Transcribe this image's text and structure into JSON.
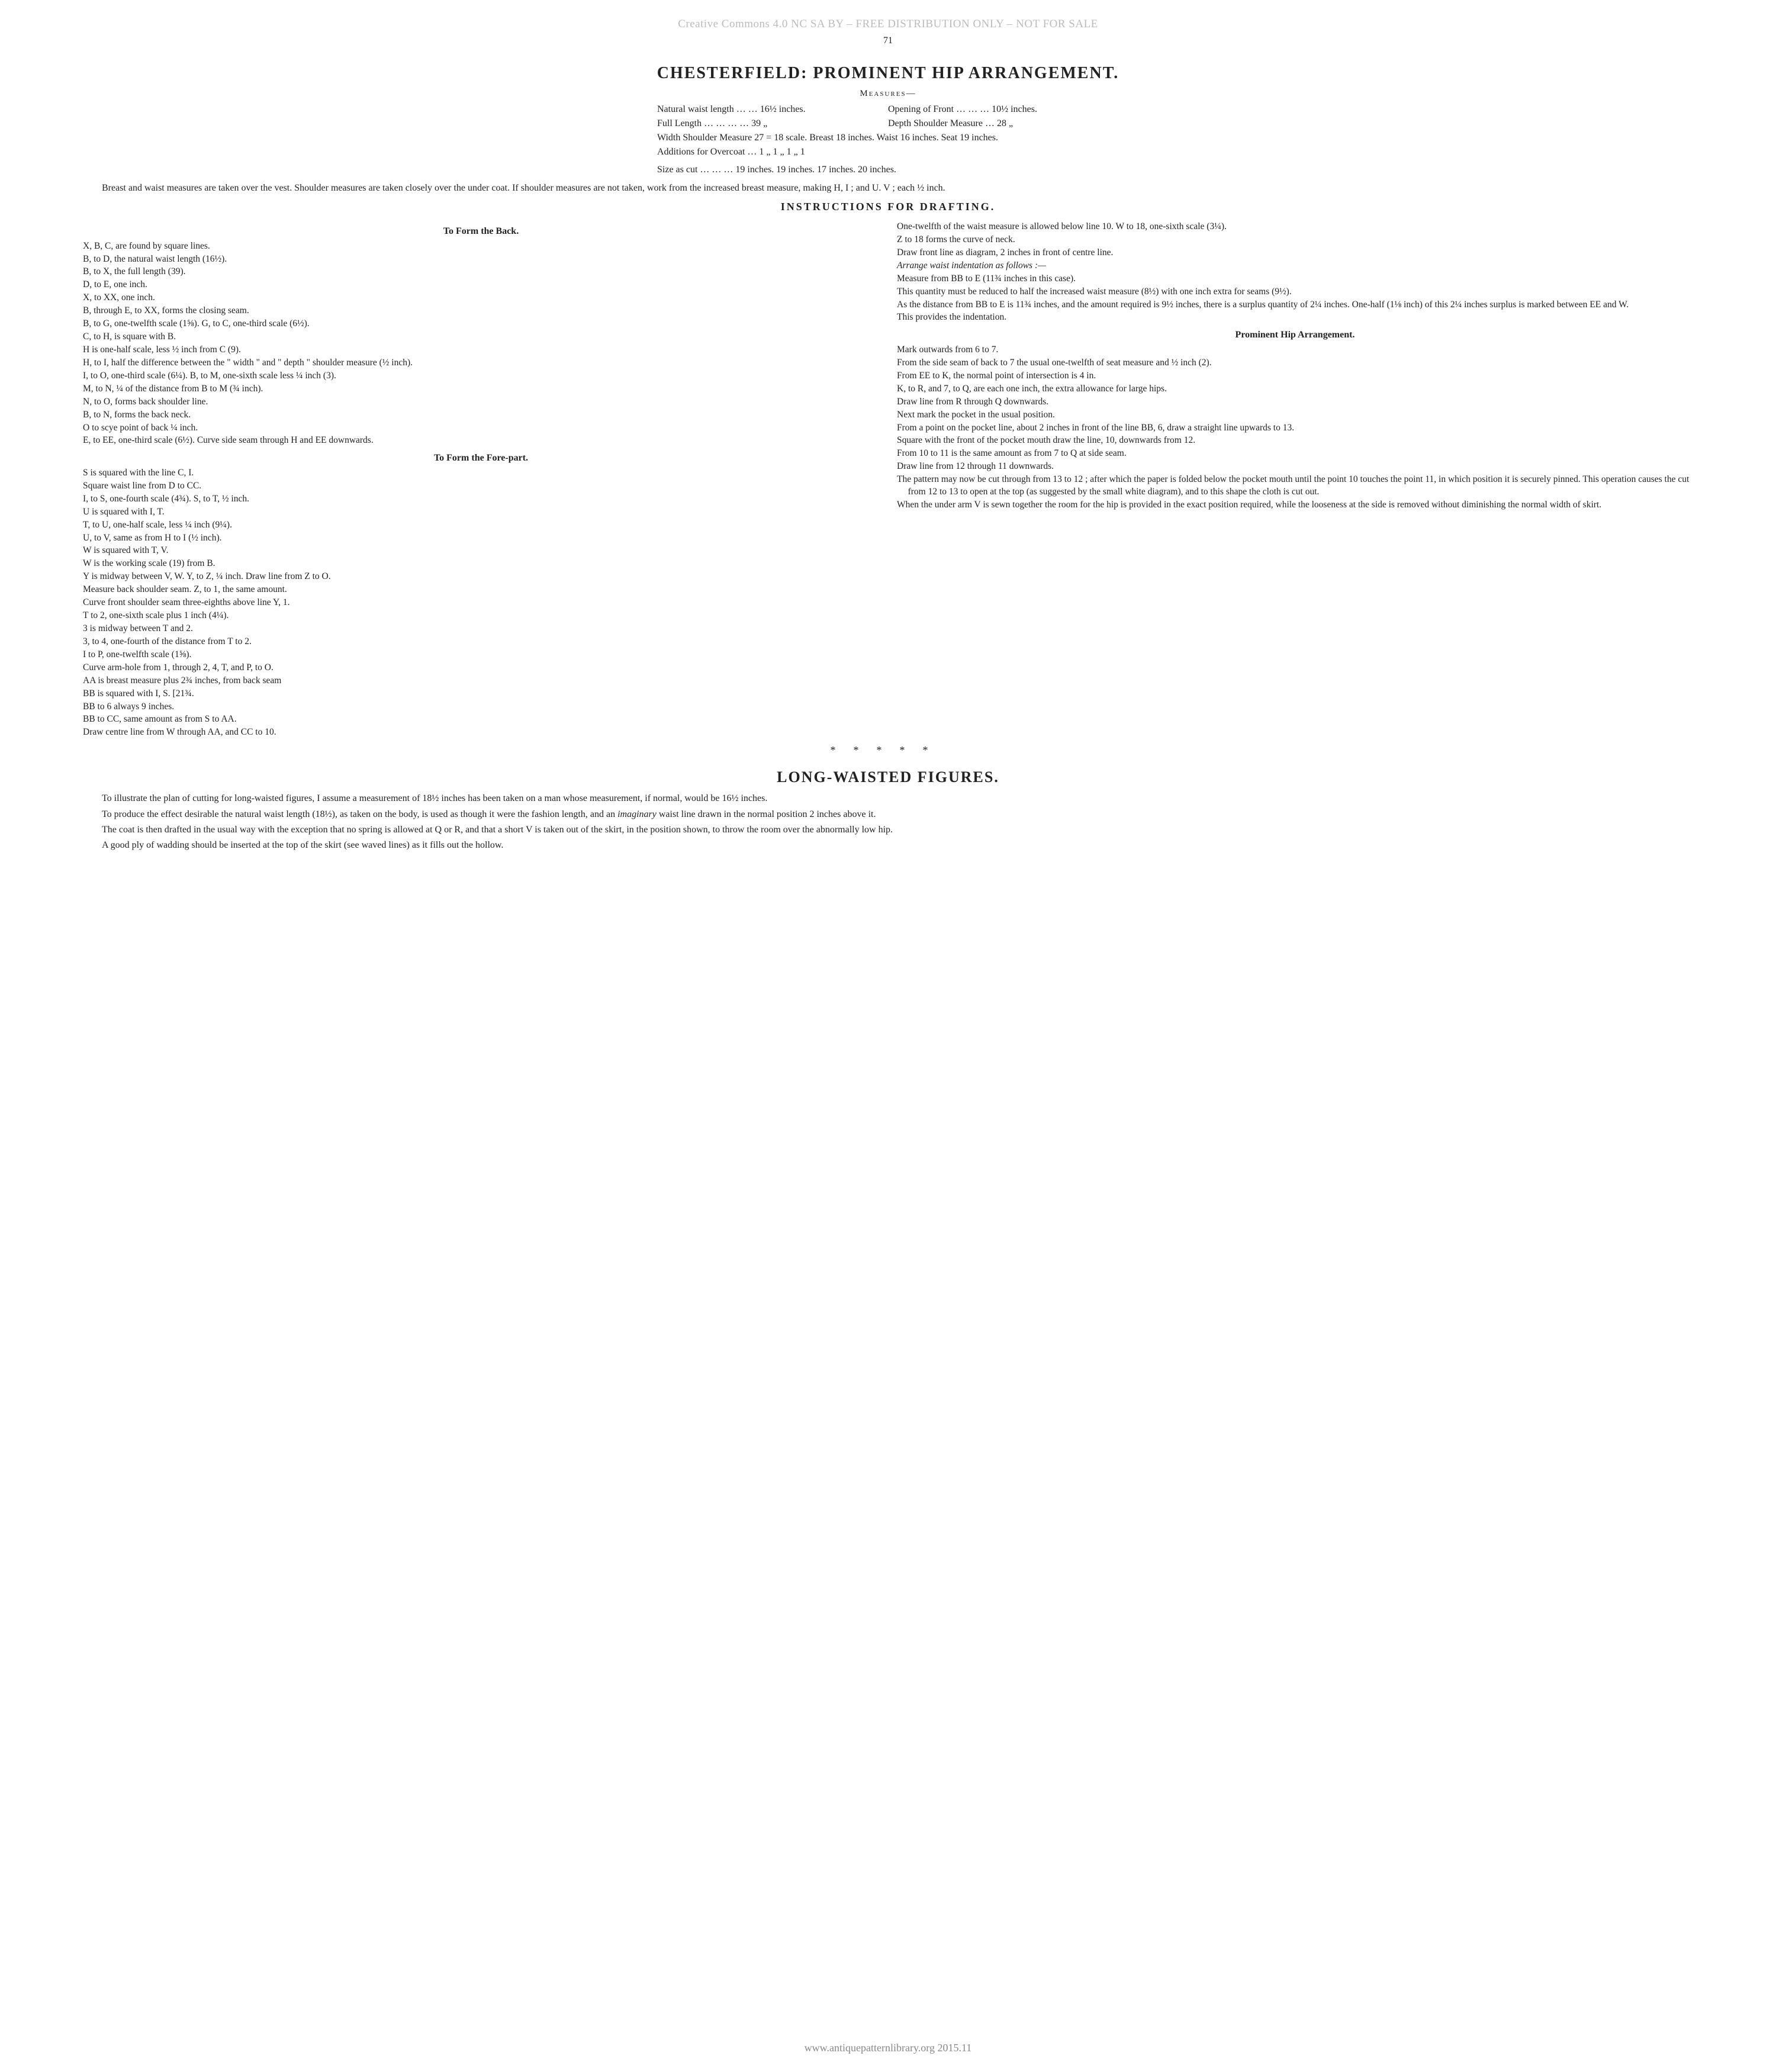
{
  "watermark_top": "Creative Commons 4.0 NC SA BY – FREE DISTRIBUTION ONLY – NOT FOR SALE",
  "watermark_bottom": "www.antiquepatternlibrary.org 2015.11",
  "page_number": "71",
  "title": "CHESTERFIELD:  PROMINENT  HIP  ARRANGEMENT.",
  "measures_label": "Measures—",
  "measures": {
    "row1_left": "Natural waist length   …   …   16½ inches.",
    "row1_right": "Opening of Front   …   …   …   10½ inches.",
    "row2_left": "Full Length …   …   …   …   39   „",
    "row2_right": "Depth Shoulder Measure   …   28   „",
    "row3": "Width Shoulder Measure 27 = 18 scale.   Breast 18 inches.   Waist 16 inches.   Seat 19 inches.",
    "row4": "Additions for Overcoat   …   1         „   1         „   1         „   1",
    "row5": "Size as cut   …   …   …   19 inches.         19 inches.         17 inches.         20 inches."
  },
  "intro": "Breast and waist measures are taken over the vest.   Shoulder measures are taken closely over the under coat.  If shoulder measures are not taken, work from the increased breast measure, making H, I ; and U. V ; each ½ inch.",
  "drafting_title": "INSTRUCTIONS  FOR  DRAFTING.",
  "col_left": {
    "h1": "To Form the Back.",
    "l": [
      "X, B, C, are found by square lines.",
      "B, to D, the natural waist length (16½).",
      "B, to X, the full length (39).",
      "D, to E, one inch.",
      "X, to XX, one inch.",
      "B, through E, to XX, forms the closing seam.",
      "B, to G, one-twelfth scale (1⅝).  G, to C, one-third scale (6½).",
      "C, to H, is square with B.",
      "H is one-half scale, less ½ inch from C (9).",
      "H, to I, half the difference between the \" width \" and \" depth \" shoulder measure (½ inch).",
      "I, to O, one-third scale (6¼).  B, to M, one-sixth scale less ¼ inch (3).",
      "M, to N, ¼ of the distance from B to M (¾ inch).",
      "N, to O, forms back shoulder line.",
      "B, to N, forms the back neck.",
      "O to scye point of back ¼ inch.",
      "E, to EE, one-third scale (6½).  Curve side seam through H and EE downwards."
    ],
    "h2": "To Form the Fore-part.",
    "l2": [
      "S is squared with the line C, I.",
      "Square waist line from D to CC.",
      "I, to S, one-fourth scale (4¾).   S, to T, ½ inch.",
      "U is squared with I, T.",
      "T, to U, one-half scale, less ¼ inch (9¼).",
      "U, to V, same as from H to I (½ inch).",
      "W is squared with T, V.",
      "W is the working scale (19) from B.",
      "Y is midway between V, W.  Y, to Z, ¼ inch.  Draw line from Z to O.",
      "Measure back shoulder seam.  Z, to 1, the same amount.",
      "Curve front shoulder seam three-eighths above line Y, 1.",
      "T to 2, one-sixth scale plus 1 inch (4¼).",
      "3 is midway between T and 2.",
      "3, to 4, one-fourth of the distance from T to 2.",
      "I to P, one-twelfth scale (1⅝).",
      "Curve arm-hole from 1, through 2, 4, T, and P, to O.",
      "AA is breast measure plus 2¾ inches, from back seam",
      "BB is squared with I, S.                                      [21¾.",
      "BB to 6 always 9 inches.",
      "BB to CC, same amount as from S to AA.",
      "Draw centre line from W through AA, and CC to 10."
    ]
  },
  "col_right": {
    "l": [
      "One-twelfth of the waist measure is allowed below line 10.   W to 18, one-sixth scale (3¼).",
      "Z to 18 forms the curve of neck.",
      "Draw front line as diagram, 2 inches in front of centre line."
    ],
    "ital": "Arrange waist indentation as follows :—",
    "l2": [
      "Measure from BB to E (11¾ inches in this case).",
      "This quantity must be reduced to half the increased waist measure (8½) with one inch extra for seams (9½).",
      "As the distance from BB to E is 11¾ inches, and the amount required is 9½ inches, there is a surplus quantity of 2¼ inches.  One-half (1⅛ inch) of this 2¼ inches surplus is marked between EE and W.",
      "This provides the indentation."
    ],
    "h3": "Prominent Hip Arrangement.",
    "l3": [
      "Mark outwards from 6 to 7.",
      "From the side seam of back to 7 the usual one-twelfth of seat measure and ½ inch (2).",
      "From EE to K, the normal point of intersection is 4 in.",
      "K, to R, and 7, to Q, are each one inch, the extra allowance for large hips.",
      "Draw line from R through Q downwards.",
      "Next mark the pocket in the usual position.",
      "From a point on the pocket line, about 2 inches in front of the line BB, 6, draw a straight line upwards to 13.",
      "Square with the front of the pocket mouth draw the line, 10, downwards from 12.",
      "From 10 to 11 is the same amount as from 7 to Q at side seam.",
      "Draw line from 12 through 11 downwards.",
      "The pattern may now be cut through from 13 to 12 ; after which the paper is folded below the pocket mouth until the point 10 touches the point 11, in which position it is securely pinned.  This operation causes the cut from 12 to 13 to open at the top (as suggested by the small white diagram), and to this shape the cloth is cut out.",
      "When the under arm V is sewn together the room for the hip is provided in the exact position required, while the looseness at the side is removed without diminishing the normal width of skirt."
    ]
  },
  "asterisks": "*****",
  "section2_title": "LONG-WAISTED  FIGURES.",
  "section2_paras": [
    "To illustrate the plan of cutting for long-waisted figures, I assume a measurement of 18½ inches has been taken on a man whose measurement, if normal, would be 16½ inches.",
    "To produce the effect desirable the natural waist length (18½), as taken on the body, is used as though it were the fashion length, and an <i>imaginary</i> waist line drawn in the normal position 2 inches above it.",
    "The coat is then drafted in the usual way with the exception that no spring is allowed at Q or R, and that a short V is taken out of the skirt, in the position shown, to throw the room over the abnormally low hip.",
    "A good ply of wadding should be inserted at the top of the skirt (see waved lines) as it fills out the hollow."
  ]
}
